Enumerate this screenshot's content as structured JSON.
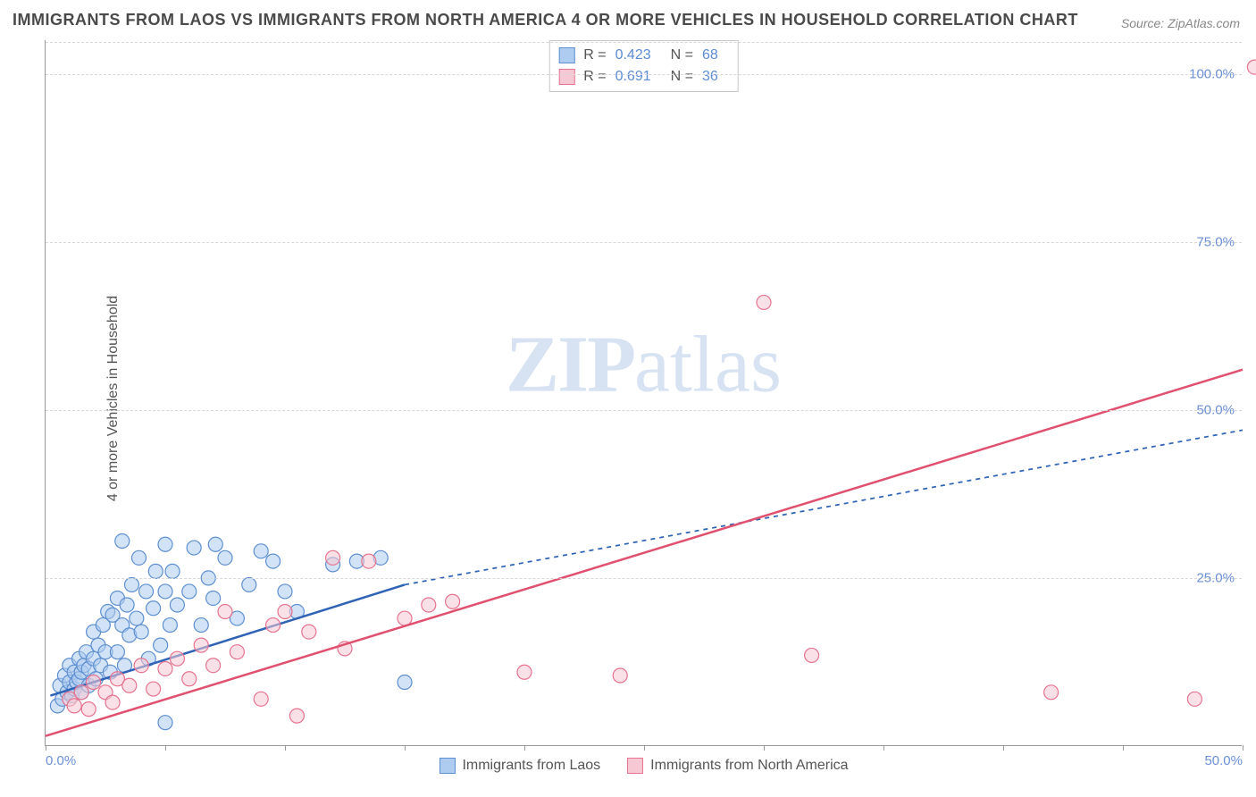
{
  "title": "IMMIGRANTS FROM LAOS VS IMMIGRANTS FROM NORTH AMERICA 4 OR MORE VEHICLES IN HOUSEHOLD CORRELATION CHART",
  "source": "Source: ZipAtlas.com",
  "ylabel": "4 or more Vehicles in Household",
  "watermark": {
    "bold": "ZIP",
    "rest": "atlas"
  },
  "chart": {
    "type": "scatter-with-regression",
    "xlim": [
      0,
      50
    ],
    "ylim": [
      0,
      105
    ],
    "yticks": [
      {
        "v": 25,
        "label": "25.0%"
      },
      {
        "v": 50,
        "label": "50.0%"
      },
      {
        "v": 75,
        "label": "75.0%"
      },
      {
        "v": 100,
        "label": "100.0%"
      }
    ],
    "xticks_major": [
      0,
      5,
      10,
      15,
      20,
      25,
      30,
      35,
      40,
      45,
      50
    ],
    "xtick_labels": [
      {
        "v": 0,
        "label": "0.0%",
        "align": "left"
      },
      {
        "v": 50,
        "label": "50.0%",
        "align": "right"
      }
    ],
    "grid_color": "#e2e2e2",
    "background_color": "#ffffff",
    "marker_radius": 8,
    "marker_stroke_width": 1.2,
    "series": [
      {
        "id": "laos",
        "label": "Immigrants from Laos",
        "fill": "#aeccf0",
        "stroke": "#5d8fd1",
        "fill_opacity": 0.55,
        "R": "0.423",
        "N": "68",
        "regression": {
          "x1": 0.2,
          "y1": 7.5,
          "x2": 15,
          "y2": 24,
          "extend_to_x": 50,
          "extend_y": 47,
          "color": "#2f63b5",
          "width": 2.5,
          "dash_extend": "5,5"
        },
        "points": [
          [
            0.5,
            6
          ],
          [
            0.6,
            9
          ],
          [
            0.7,
            7
          ],
          [
            0.8,
            10.5
          ],
          [
            0.9,
            8
          ],
          [
            1.0,
            9.5
          ],
          [
            1.0,
            12
          ],
          [
            1.1,
            7.5
          ],
          [
            1.2,
            11
          ],
          [
            1.2,
            8.5
          ],
          [
            1.3,
            9.5
          ],
          [
            1.4,
            10
          ],
          [
            1.4,
            13
          ],
          [
            1.5,
            11
          ],
          [
            1.5,
            8
          ],
          [
            1.6,
            12
          ],
          [
            1.7,
            14
          ],
          [
            1.8,
            9
          ],
          [
            1.8,
            11.5
          ],
          [
            2.0,
            13
          ],
          [
            2.0,
            17
          ],
          [
            2.1,
            10
          ],
          [
            2.2,
            15
          ],
          [
            2.3,
            12
          ],
          [
            2.4,
            18
          ],
          [
            2.5,
            14
          ],
          [
            2.6,
            20
          ],
          [
            2.7,
            11
          ],
          [
            2.8,
            19.5
          ],
          [
            3.0,
            14
          ],
          [
            3.0,
            22
          ],
          [
            3.2,
            18
          ],
          [
            3.2,
            30.5
          ],
          [
            3.3,
            12
          ],
          [
            3.4,
            21
          ],
          [
            3.5,
            16.5
          ],
          [
            3.6,
            24
          ],
          [
            3.8,
            19
          ],
          [
            3.9,
            28
          ],
          [
            4.0,
            17
          ],
          [
            4.2,
            23
          ],
          [
            4.3,
            13
          ],
          [
            4.5,
            20.5
          ],
          [
            4.6,
            26
          ],
          [
            4.8,
            15
          ],
          [
            5.0,
            23
          ],
          [
            5.0,
            30
          ],
          [
            5.2,
            18
          ],
          [
            5.3,
            26
          ],
          [
            5.5,
            21
          ],
          [
            6.0,
            23
          ],
          [
            6.2,
            29.5
          ],
          [
            6.5,
            18
          ],
          [
            6.8,
            25
          ],
          [
            7.0,
            22
          ],
          [
            7.1,
            30
          ],
          [
            7.5,
            28
          ],
          [
            8.0,
            19
          ],
          [
            8.5,
            24
          ],
          [
            9.0,
            29
          ],
          [
            9.5,
            27.5
          ],
          [
            10.0,
            23
          ],
          [
            10.5,
            20
          ],
          [
            12.0,
            27
          ],
          [
            13,
            27.5
          ],
          [
            14,
            28
          ],
          [
            15,
            9.5
          ],
          [
            5.0,
            3.5
          ]
        ]
      },
      {
        "id": "north-america",
        "label": "Immigrants from North America",
        "fill": "#f6c8d4",
        "stroke": "#e6738f",
        "fill_opacity": 0.55,
        "R": "0.691",
        "N": "36",
        "regression": {
          "x1": 0,
          "y1": 1.5,
          "x2": 50,
          "y2": 56,
          "extend_to_x": 50,
          "extend_y": 56,
          "color": "#e0516f",
          "width": 2.5,
          "dash_extend": null
        },
        "points": [
          [
            1.0,
            7
          ],
          [
            1.2,
            6
          ],
          [
            1.5,
            8
          ],
          [
            1.8,
            5.5
          ],
          [
            2.0,
            9.5
          ],
          [
            2.5,
            8
          ],
          [
            2.8,
            6.5
          ],
          [
            3.0,
            10
          ],
          [
            3.5,
            9
          ],
          [
            4.0,
            12
          ],
          [
            4.5,
            8.5
          ],
          [
            5.0,
            11.5
          ],
          [
            5.5,
            13
          ],
          [
            6.0,
            10
          ],
          [
            6.5,
            15
          ],
          [
            7.0,
            12
          ],
          [
            7.5,
            20
          ],
          [
            8.0,
            14
          ],
          [
            9.0,
            7
          ],
          [
            9.5,
            18
          ],
          [
            10,
            20
          ],
          [
            10.5,
            4.5
          ],
          [
            11,
            17
          ],
          [
            12,
            28
          ],
          [
            12.5,
            14.5
          ],
          [
            13.5,
            27.5
          ],
          [
            15,
            19
          ],
          [
            16,
            21
          ],
          [
            17,
            21.5
          ],
          [
            20,
            11
          ],
          [
            24,
            10.5
          ],
          [
            32,
            13.5
          ],
          [
            30,
            66
          ],
          [
            42,
            8
          ],
          [
            48,
            7
          ],
          [
            50.5,
            101
          ]
        ]
      }
    ],
    "bottom_legend": [
      {
        "ref": "laos"
      },
      {
        "ref": "north-america"
      }
    ]
  }
}
